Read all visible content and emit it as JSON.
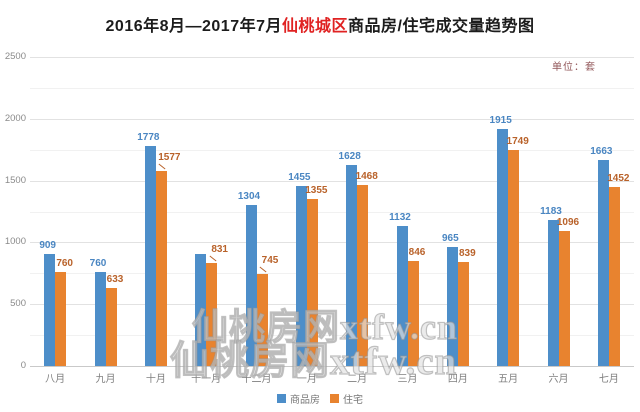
{
  "title": {
    "prefix": "2016年8月—2017年7月",
    "highlight": "仙桃城区",
    "suffix": "商品房/住宅成交量趋势图"
  },
  "unit_label": "单位：套",
  "watermark": {
    "line1": "仙桃房网xtfw.cn",
    "line2": "仙桃房网xtfw.cn"
  },
  "colors": {
    "bar_blue": "#4d8ec9",
    "bar_orange": "#e8832f",
    "label_blue": "#4a86c2",
    "label_orange": "#b9622a",
    "title_red": "#e02222",
    "axis_text": "#8a8a8a",
    "grid_major": "#e2e2e2",
    "grid_minor": "#f1f1f1"
  },
  "chart_data": {
    "type": "bar",
    "title": "2016年8月—2017年7月仙桃城区商品房/住宅成交量趋势图",
    "unit": "单位：套",
    "categories": [
      "八月",
      "九月",
      "十月",
      "十一月",
      "十二月",
      "一月",
      "二月",
      "三月",
      "四月",
      "五月",
      "六月",
      "七月"
    ],
    "series": [
      {
        "name": "商品房",
        "color": "#4d8ec9",
        "values": [
          909,
          760,
          1778,
          905,
          1304,
          1455,
          1628,
          1132,
          965,
          1915,
          1183,
          1663
        ],
        "labels": [
          "909",
          "760",
          "1778",
          "",
          "1304",
          "1455",
          "1628",
          "1132",
          "965",
          "1915",
          "1183",
          "1663"
        ]
      },
      {
        "name": "住宅",
        "color": "#e8832f",
        "values": [
          760,
          633,
          1577,
          831,
          745,
          1355,
          1468,
          846,
          839,
          1749,
          1096,
          1452
        ],
        "labels": [
          "760",
          "633",
          "1577",
          "831",
          "745",
          "1355",
          "1468",
          "846",
          "839",
          "1749",
          "1096",
          "1452"
        ]
      }
    ],
    "xlabel": "",
    "ylabel": "",
    "ylim": [
      0,
      2500
    ],
    "yticks": [
      0,
      500,
      1000,
      1500,
      2000,
      2500
    ],
    "grid": true,
    "legend_position": "bottom"
  }
}
